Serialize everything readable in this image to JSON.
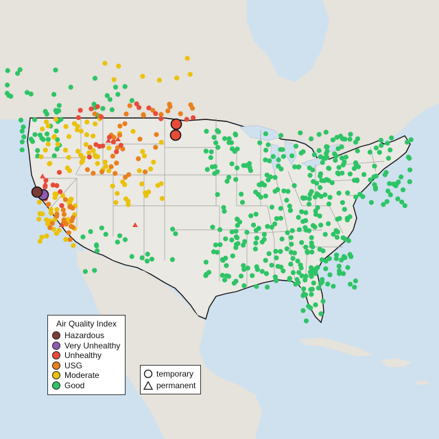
{
  "legend": {
    "title": "Air Quality Index",
    "categories": [
      {
        "key": "hazardous",
        "label": "Hazardous",
        "color": "#7e3a36"
      },
      {
        "key": "very_unhealthy",
        "label": "Very Unhealthy",
        "color": "#8f5bb0"
      },
      {
        "key": "unhealthy",
        "label": "Unhealthy",
        "color": "#e84b39"
      },
      {
        "key": "usg",
        "label": "USG",
        "color": "#e8801e"
      },
      {
        "key": "moderate",
        "label": "Moderate",
        "color": "#eac20c"
      },
      {
        "key": "good",
        "label": "Good",
        "color": "#2ec466"
      }
    ]
  },
  "shape_legend": {
    "items": [
      {
        "key": "temporary",
        "label": "temporary",
        "icon": "circle-outline-icon"
      },
      {
        "key": "permanent",
        "label": "permanent",
        "icon": "triangle-outline-icon"
      }
    ]
  },
  "colors": {
    "water": "#cfe1ef",
    "land": "#eae7e3",
    "us_land": "#e9e7e2",
    "border": "#111111",
    "state_line": "#9a9a9a"
  }
}
